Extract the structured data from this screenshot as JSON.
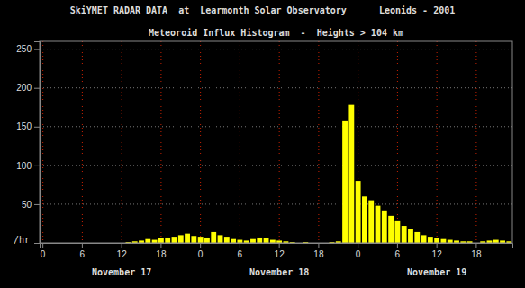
{
  "chart_data": {
    "type": "bar",
    "title": "SkiYMET RADAR DATA  at  Learmonth Solar Observatory      Leonids - 2001",
    "subtitle": "Meteoroid Influx Histogram  -  Heights > 104 km",
    "y_label": "/hr",
    "categories": [
      "0",
      null,
      null,
      null,
      null,
      null,
      "6",
      null,
      null,
      null,
      null,
      null,
      "12",
      null,
      null,
      null,
      null,
      null,
      "18",
      null,
      null,
      null,
      null,
      null,
      "0",
      null,
      null,
      null,
      null,
      null,
      "6",
      null,
      null,
      null,
      null,
      null,
      "12",
      null,
      null,
      null,
      null,
      null,
      "18",
      null,
      null,
      null,
      null,
      null,
      "0",
      null,
      null,
      null,
      null,
      null,
      "6",
      null,
      null,
      null,
      null,
      null,
      "12",
      null,
      null,
      null,
      null,
      null,
      "18",
      null,
      null,
      null,
      null,
      null
    ],
    "values": [
      0,
      0,
      0,
      0,
      0,
      0,
      0,
      0,
      0,
      0,
      0,
      0,
      0,
      1,
      2,
      3,
      5,
      4,
      6,
      7,
      8,
      10,
      12,
      9,
      8,
      7,
      14,
      10,
      8,
      5,
      4,
      3,
      5,
      7,
      6,
      4,
      3,
      2,
      1,
      0,
      1,
      0,
      0,
      0,
      1,
      2,
      158,
      178,
      80,
      60,
      55,
      48,
      42,
      35,
      28,
      22,
      18,
      14,
      10,
      8,
      6,
      5,
      4,
      3,
      2,
      2,
      0,
      2,
      3,
      4,
      3,
      2
    ],
    "color": "#ffff00",
    "ylim": [
      0,
      260
    ],
    "yticks": [
      50,
      100,
      150,
      200,
      250
    ],
    "grid": true,
    "annotations": [
      {
        "text": "November 17",
        "x": 12
      },
      {
        "text": "November 18",
        "x": 36
      },
      {
        "text": "November 19",
        "x": 60
      }
    ]
  }
}
